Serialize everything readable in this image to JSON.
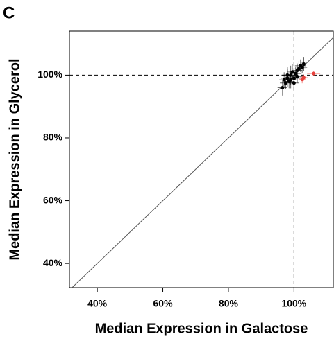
{
  "panel_label": "C",
  "chart_data": {
    "type": "scatter",
    "x_label": "Median Expression in Galactose",
    "y_label": "Median Expression in Glycerol",
    "xlim": [
      31.5,
      112
    ],
    "ylim": [
      32.3,
      114
    ],
    "xticks": [
      {
        "value": 40,
        "label": "40%"
      },
      {
        "value": 60,
        "label": "60%"
      },
      {
        "value": 80,
        "label": "80%"
      },
      {
        "value": 100,
        "label": "100%"
      }
    ],
    "yticks": [
      {
        "value": 40,
        "label": "40%"
      },
      {
        "value": 60,
        "label": "60%"
      },
      {
        "value": 80,
        "label": "80%"
      },
      {
        "value": 100,
        "label": "100%"
      }
    ],
    "hline": 100,
    "vline": 100,
    "diagonal": true,
    "series": [
      {
        "color": "#000000",
        "x": [
          96.5,
          97.5,
          98,
          98.5,
          99,
          99.5,
          100,
          100.5,
          101,
          101.5,
          102,
          102.5,
          103,
          99,
          98,
          100,
          101,
          97
        ],
        "y": [
          96,
          97.5,
          99,
          98,
          100,
          101,
          99,
          100.5,
          101.5,
          102,
          103,
          102.5,
          103.5,
          98.5,
          100,
          97.5,
          99.5,
          98.5
        ],
        "xerr": [
          1.5,
          1.8,
          2,
          1.5,
          2.2,
          1.6,
          2,
          1.8,
          1.5,
          2,
          1.7,
          1.5,
          1.8,
          1.6,
          2,
          1.5,
          1.7,
          1.5
        ],
        "yerr": [
          2.5,
          2,
          2.8,
          2.2,
          3,
          2.4,
          2.6,
          2,
          2.2,
          2.5,
          2,
          1.8,
          2.3,
          2.7,
          2.5,
          2.2,
          2,
          2.4
        ]
      },
      {
        "color": "#e8413c",
        "x": [
          103,
          106,
          102.5
        ],
        "y": [
          99.2,
          100.5,
          98.6
        ],
        "xerr": [
          1.2,
          2,
          1
        ],
        "yerr": [
          1,
          0.8,
          1.2
        ]
      }
    ]
  }
}
